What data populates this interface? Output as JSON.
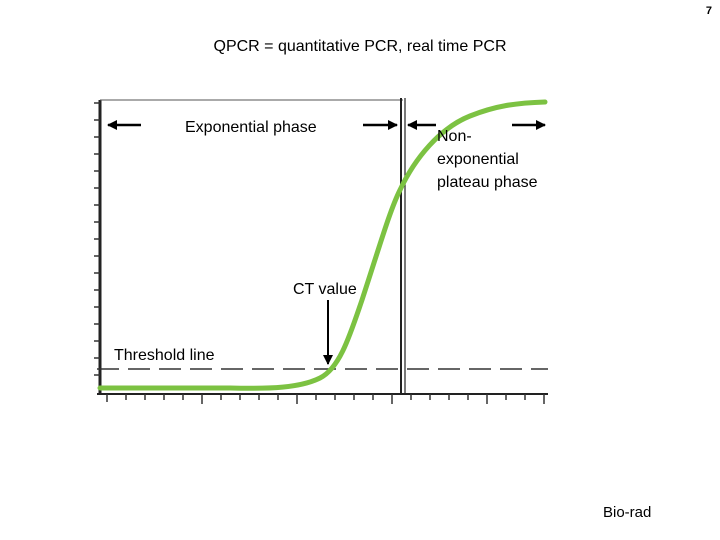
{
  "page_number": "7",
  "title": "QPCR = quantitative PCR, real time PCR",
  "labels": {
    "exponential_phase": "Exponential phase",
    "non_exponential_plateau": "Non-exponential plateau phase",
    "ct_value": "CT value",
    "threshold_line": "Threshold line"
  },
  "credit": "Bio-rad",
  "colors": {
    "curve": "#7cc242",
    "axes": "#222222"
  }
}
